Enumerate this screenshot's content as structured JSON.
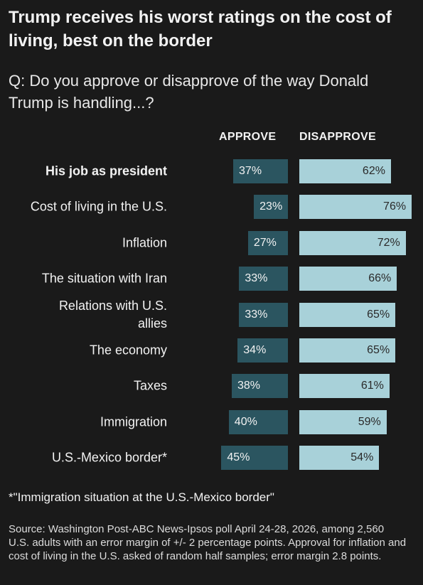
{
  "chart_data": {
    "type": "diverging-bar",
    "title": "Trump receives his worst ratings on the cost of living, best on the border",
    "subtitle": "Q: Do you approve or disapprove of the way Donald Trump is handling...?",
    "categories": [
      "His job as president",
      "Cost of living in the U.S.",
      "Inflation",
      "The situation with Iran",
      "Relations with U.S. allies",
      "The economy",
      "Taxes",
      "Immigration",
      "U.S.-Mexico border*"
    ],
    "bold_category_index": 0,
    "series": [
      {
        "name": "APPROVE",
        "color": "#2b5560",
        "label_color": "#f2f2f2",
        "values": [
          37,
          23,
          27,
          33,
          33,
          34,
          38,
          40,
          45
        ],
        "value_labels": [
          "37%",
          "23%",
          "27%",
          "33%",
          "33%",
          "34%",
          "38%",
          "40%",
          "45%"
        ]
      },
      {
        "name": "DISAPPROVE",
        "color": "#a8d1d9",
        "label_color": "#2a2a2a",
        "values": [
          62,
          76,
          72,
          66,
          65,
          65,
          61,
          59,
          54
        ],
        "value_labels": [
          "62%",
          "76%",
          "72%",
          "66%",
          "65%",
          "65%",
          "61%",
          "59%",
          "54%"
        ]
      }
    ],
    "footnote": "*\"Immigration situation at the U.S.-Mexico border\"",
    "source": "Source: Washington Post-ABC News-Ipsos poll April 24-28, 2026, among 2,560 U.S. adults with an error margin of +/- 2 percentage points. Approval for inflation and cost of living in the U.S. asked of random half samples; error margin 2.8 points."
  }
}
